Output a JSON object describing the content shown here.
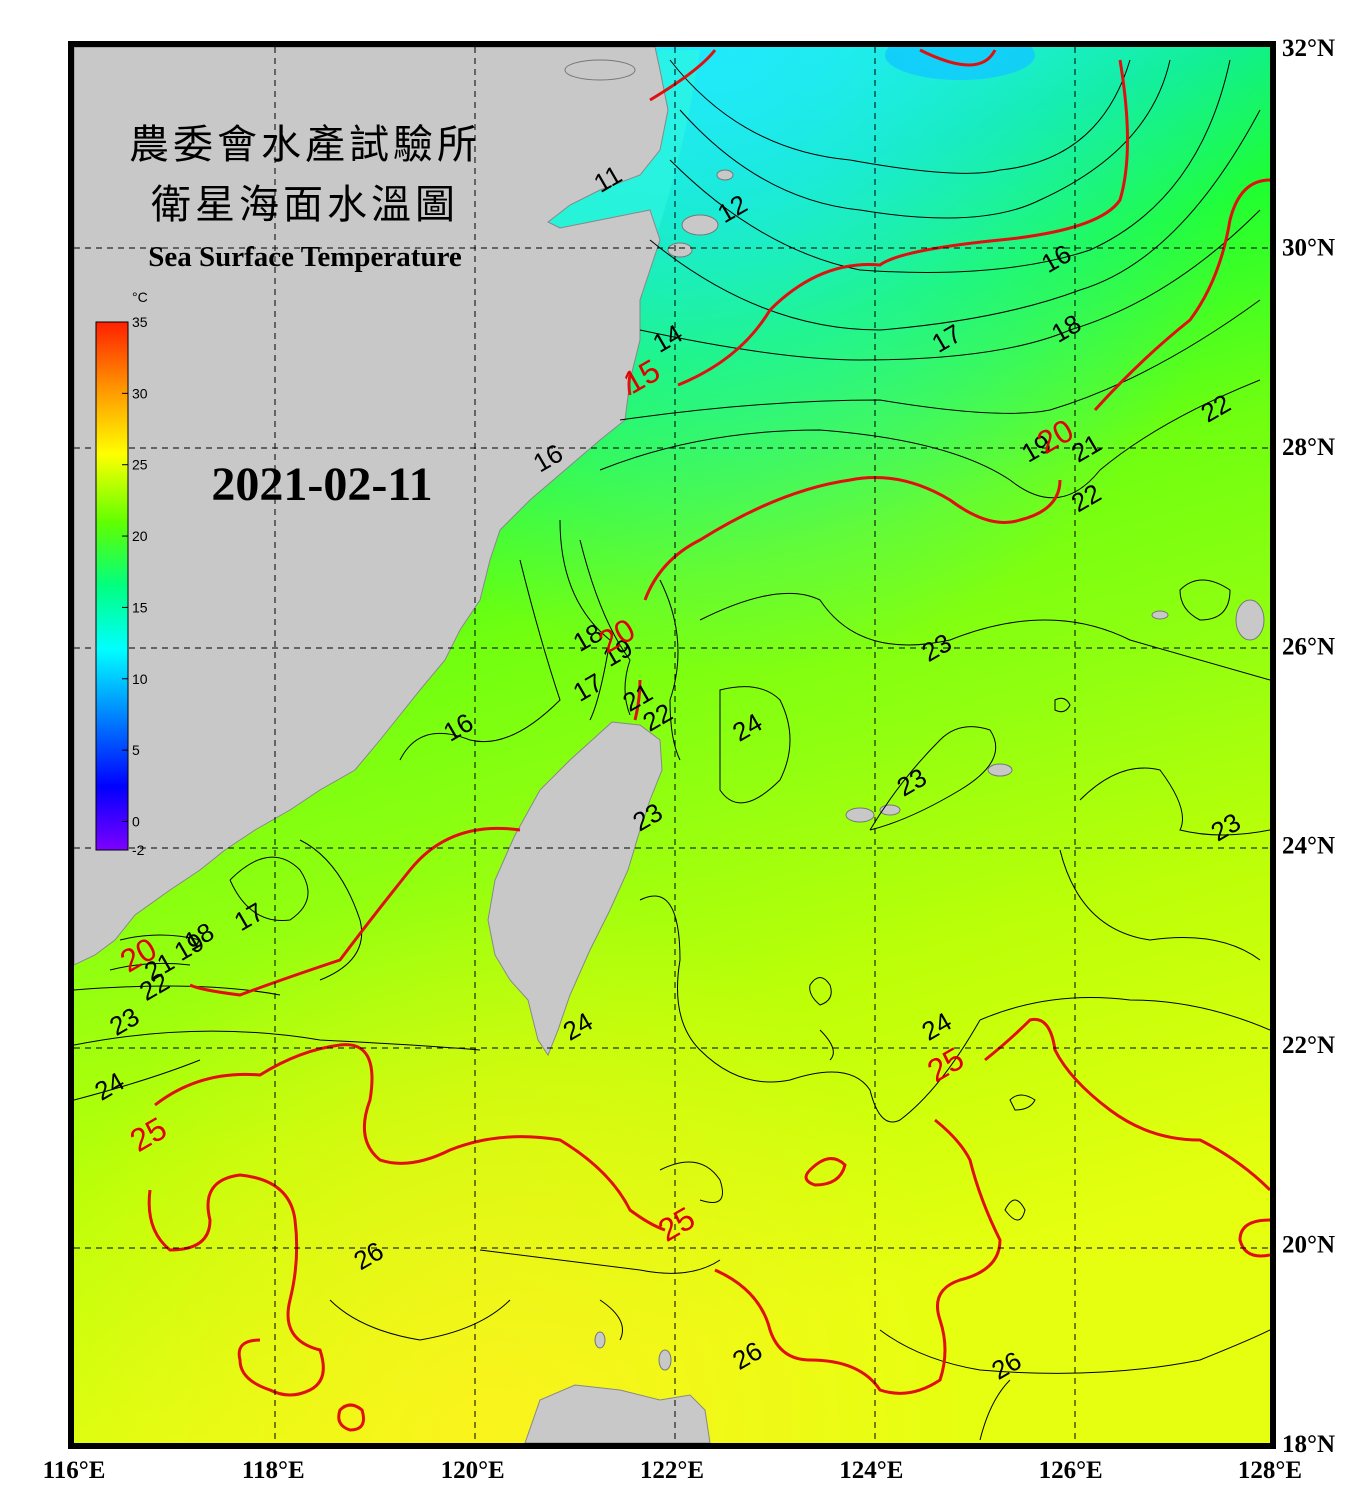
{
  "title": {
    "line1": "農委會水產試驗所",
    "line2": "衛星海面水溫圖",
    "english": "Sea Surface Temperature"
  },
  "date": "2021-02-11",
  "axes": {
    "lon_labels": [
      "116°E",
      "118°E",
      "120°E",
      "122°E",
      "124°E",
      "126°E",
      "128°E"
    ],
    "lat_labels": [
      "32°N",
      "30°N",
      "28°N",
      "26°N",
      "24°N",
      "22°N",
      "20°N",
      "18°N"
    ],
    "lon_range": [
      116,
      128
    ],
    "lat_range": [
      18,
      32
    ]
  },
  "colorbar": {
    "unit": "°C",
    "range": [
      -2,
      35
    ],
    "ticks": [
      "35",
      "30",
      "25",
      "20",
      "15",
      "10",
      "5",
      "0",
      "-2"
    ],
    "colors": [
      "#7d00ff",
      "#0000ff",
      "#0080ff",
      "#00ffff",
      "#00ff80",
      "#60ff00",
      "#ffff00",
      "#ff9000",
      "#ff2000"
    ]
  },
  "contours": {
    "red_labels": [
      {
        "text": "15",
        "lon": 121.75,
        "lat": 28.6
      },
      {
        "text": "20",
        "lon": 125.9,
        "lat": 28.0
      },
      {
        "text": "20",
        "lon": 121.5,
        "lat": 26.0
      },
      {
        "text": "20",
        "lon": 116.7,
        "lat": 22.8
      },
      {
        "text": "25",
        "lon": 116.8,
        "lat": 21.0
      },
      {
        "text": "25",
        "lon": 122.1,
        "lat": 20.1
      },
      {
        "text": "25",
        "lon": 124.8,
        "lat": 21.7
      }
    ],
    "black_labels": [
      {
        "text": "11",
        "lon": 121.4,
        "lat": 30.6
      },
      {
        "text": "12",
        "lon": 122.65,
        "lat": 30.3
      },
      {
        "text": "14",
        "lon": 122.0,
        "lat": 29.0
      },
      {
        "text": "16",
        "lon": 125.9,
        "lat": 29.8
      },
      {
        "text": "17",
        "lon": 124.8,
        "lat": 29.0
      },
      {
        "text": "18",
        "lon": 126.0,
        "lat": 29.1
      },
      {
        "text": "19",
        "lon": 125.7,
        "lat": 27.9
      },
      {
        "text": "21",
        "lon": 126.2,
        "lat": 27.9
      },
      {
        "text": "22",
        "lon": 127.5,
        "lat": 28.3
      },
      {
        "text": "22",
        "lon": 126.2,
        "lat": 27.4
      },
      {
        "text": "16",
        "lon": 120.8,
        "lat": 27.8
      },
      {
        "text": "18",
        "lon": 121.2,
        "lat": 26.0
      },
      {
        "text": "19",
        "lon": 121.5,
        "lat": 25.85
      },
      {
        "text": "17",
        "lon": 121.2,
        "lat": 25.5
      },
      {
        "text": "21",
        "lon": 121.7,
        "lat": 25.4
      },
      {
        "text": "22",
        "lon": 121.9,
        "lat": 25.2
      },
      {
        "text": "16",
        "lon": 119.9,
        "lat": 25.1
      },
      {
        "text": "23",
        "lon": 124.7,
        "lat": 25.9
      },
      {
        "text": "24",
        "lon": 122.8,
        "lat": 25.1
      },
      {
        "text": "23",
        "lon": 124.45,
        "lat": 24.55
      },
      {
        "text": "23",
        "lon": 127.6,
        "lat": 24.1
      },
      {
        "text": "23",
        "lon": 121.8,
        "lat": 24.2
      },
      {
        "text": "17",
        "lon": 117.8,
        "lat": 23.2
      },
      {
        "text": "18",
        "lon": 117.3,
        "lat": 23.0
      },
      {
        "text": "19",
        "lon": 117.2,
        "lat": 22.9
      },
      {
        "text": "21",
        "lon": 116.9,
        "lat": 22.7
      },
      {
        "text": "22",
        "lon": 116.85,
        "lat": 22.5
      },
      {
        "text": "23",
        "lon": 116.55,
        "lat": 22.15
      },
      {
        "text": "24",
        "lon": 121.1,
        "lat": 22.1
      },
      {
        "text": "24",
        "lon": 124.7,
        "lat": 22.1
      },
      {
        "text": "24",
        "lon": 116.4,
        "lat": 21.5
      },
      {
        "text": "26",
        "lon": 119.0,
        "lat": 19.8
      },
      {
        "text": "26",
        "lon": 122.8,
        "lat": 18.8
      },
      {
        "text": "26",
        "lon": 125.4,
        "lat": 18.7
      }
    ]
  }
}
